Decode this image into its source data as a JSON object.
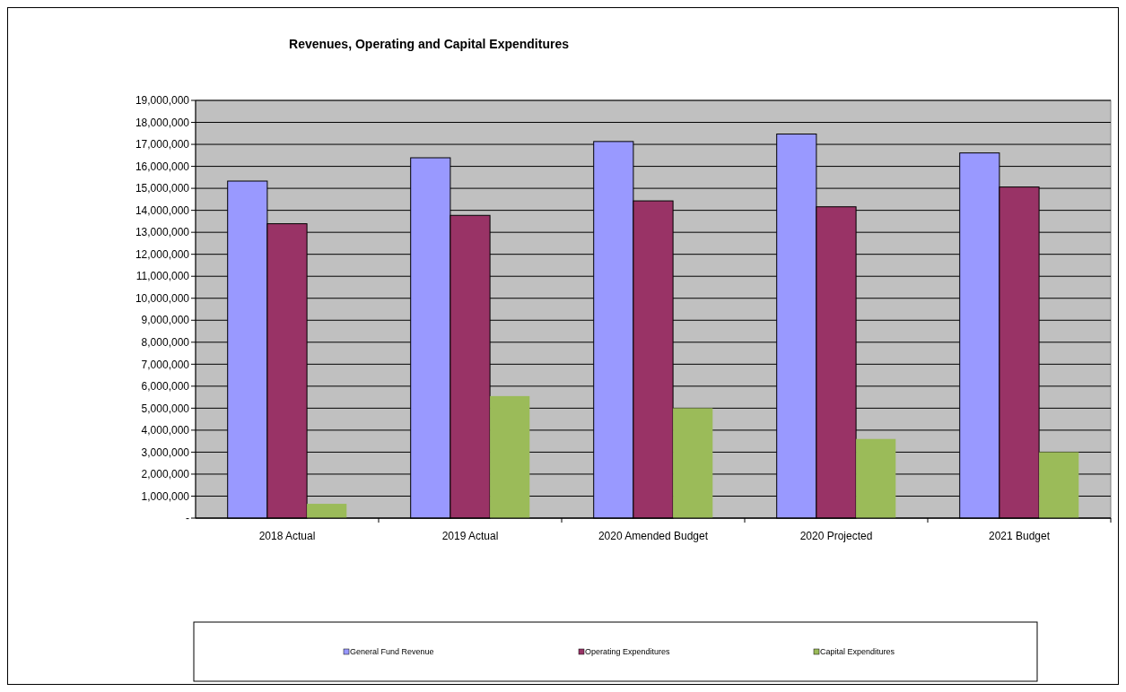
{
  "chart_data": {
    "type": "bar",
    "title": "Revenues, Operating and Capital Expenditures",
    "categories": [
      "2018 Actual",
      "2019 Actual",
      "2020 Amended Budget",
      "2020 Projected",
      "2021 Budget"
    ],
    "series": [
      {
        "name": "General Fund Revenue",
        "color": "#9999ff",
        "values": [
          15330000,
          16390000,
          17130000,
          17470000,
          16610000
        ]
      },
      {
        "name": "Operating Expenditures",
        "color": "#993366",
        "values": [
          13390000,
          13770000,
          14430000,
          14160000,
          15060000
        ]
      },
      {
        "name": "Capital Expenditures",
        "color": "#9bbb59",
        "values": [
          650000,
          5550000,
          5000000,
          3600000,
          3000000
        ]
      }
    ],
    "ylim": [
      0,
      19000000
    ],
    "yticks": [
      {
        "value": 0,
        "label": "-"
      },
      {
        "value": 1000000,
        "label": "1,000,000"
      },
      {
        "value": 2000000,
        "label": "2,000,000"
      },
      {
        "value": 3000000,
        "label": "3,000,000"
      },
      {
        "value": 4000000,
        "label": "4,000,000"
      },
      {
        "value": 5000000,
        "label": "5,000,000"
      },
      {
        "value": 6000000,
        "label": "6,000,000"
      },
      {
        "value": 7000000,
        "label": "7,000,000"
      },
      {
        "value": 8000000,
        "label": "8,000,000"
      },
      {
        "value": 9000000,
        "label": "9,000,000"
      },
      {
        "value": 10000000,
        "label": "10,000,000"
      },
      {
        "value": 11000000,
        "label": "11,000,000"
      },
      {
        "value": 12000000,
        "label": "12,000,000"
      },
      {
        "value": 13000000,
        "label": "13,000,000"
      },
      {
        "value": 14000000,
        "label": "14,000,000"
      },
      {
        "value": 15000000,
        "label": "15,000,000"
      },
      {
        "value": 16000000,
        "label": "16,000,000"
      },
      {
        "value": 17000000,
        "label": "17,000,000"
      },
      {
        "value": 18000000,
        "label": "18,000,000"
      },
      {
        "value": 19000000,
        "label": "19,000,000"
      }
    ],
    "grid": "y",
    "legend": "bottom"
  }
}
